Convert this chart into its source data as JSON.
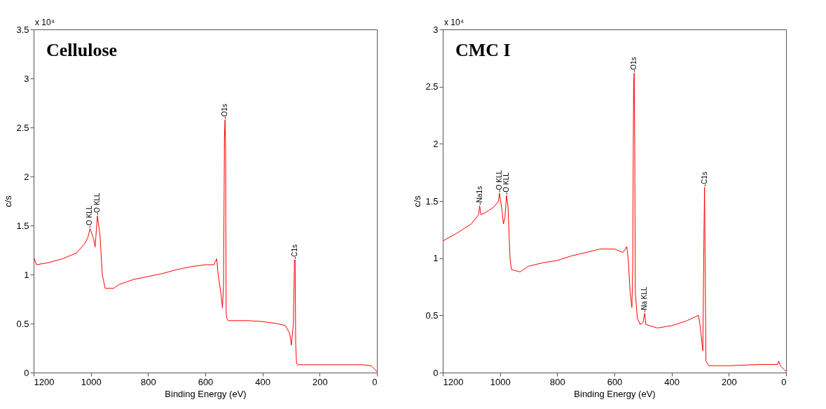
{
  "chart_data": [
    {
      "type": "line",
      "title": "Cellulose",
      "xlabel": "Binding Energy (eV)",
      "ylabel": "c/s",
      "xlim": [
        1200,
        0
      ],
      "xticks": [
        1200,
        1000,
        800,
        600,
        400,
        200,
        0
      ],
      "ylim": [
        0,
        3.5
      ],
      "yticks": [
        0,
        0.5,
        1,
        1.5,
        2,
        2.5,
        3,
        3.5
      ],
      "annotations": [
        "x 10⁴",
        {
          "text": "-O KLL",
          "x": 1003,
          "y": 1.47
        },
        {
          "text": "-O KLL",
          "x": 977,
          "y": 1.6
        },
        {
          "text": "-O1s",
          "x": 531,
          "y": 2.58
        },
        {
          "text": "-C1s",
          "x": 286,
          "y": 1.15
        }
      ],
      "series": [
        {
          "color": "#ff0000",
          "x": [
            1200,
            1190,
            1150,
            1100,
            1050,
            1020,
            1010,
            1003,
            990,
            985,
            977,
            968,
            960,
            950,
            920,
            900,
            850,
            800,
            750,
            700,
            650,
            600,
            570,
            560,
            555,
            545,
            540,
            536,
            533,
            531,
            529,
            527,
            524,
            520,
            450,
            400,
            350,
            320,
            305,
            299,
            292,
            288,
            286,
            284,
            281,
            277,
            200,
            100,
            50,
            20,
            0
          ],
          "values": [
            1.18,
            1.1,
            1.12,
            1.16,
            1.22,
            1.32,
            1.38,
            1.47,
            1.36,
            1.28,
            1.6,
            1.4,
            1.0,
            0.86,
            0.86,
            0.9,
            0.95,
            0.98,
            1.01,
            1.05,
            1.08,
            1.1,
            1.1,
            1.16,
            1.0,
            0.8,
            0.66,
            0.9,
            2.4,
            2.58,
            2.3,
            0.6,
            0.55,
            0.53,
            0.53,
            0.52,
            0.5,
            0.48,
            0.4,
            0.28,
            0.5,
            1.15,
            1.15,
            0.3,
            0.1,
            0.08,
            0.08,
            0.08,
            0.08,
            0.07,
            0.01
          ]
        }
      ]
    },
    {
      "type": "line",
      "title": "CMC I",
      "xlabel": "Binding Energy (eV)",
      "ylabel": "c/s",
      "xlim": [
        1200,
        0
      ],
      "xticks": [
        1200,
        1000,
        800,
        600,
        400,
        200,
        0
      ],
      "ylim": [
        0,
        3
      ],
      "yticks": [
        0,
        0.5,
        1,
        1.5,
        2,
        2.5,
        3
      ],
      "annotations": [
        "x 10⁴",
        {
          "text": "-Na1s",
          "x": 1071,
          "y": 1.46
        },
        {
          "text": "-O KLL",
          "x": 1002,
          "y": 1.57
        },
        {
          "text": "-O KLL",
          "x": 977,
          "y": 1.55
        },
        {
          "text": "-O1s",
          "x": 531,
          "y": 2.62
        },
        {
          "text": "-Na KLL",
          "x": 494,
          "y": 0.52
        },
        {
          "text": "-C1s",
          "x": 285,
          "y": 1.62
        }
      ],
      "series": [
        {
          "color": "#ff0000",
          "x": [
            1200,
            1150,
            1100,
            1075,
            1071,
            1067,
            1050,
            1020,
            1005,
            1002,
            993,
            988,
            983,
            977,
            972,
            965,
            960,
            930,
            900,
            850,
            800,
            750,
            700,
            650,
            600,
            570,
            557,
            552,
            545,
            539,
            536,
            533,
            531,
            529,
            527,
            520,
            510,
            500,
            494,
            490,
            450,
            400,
            350,
            306,
            300,
            291,
            287,
            285,
            283,
            280,
            270,
            200,
            100,
            30,
            26,
            20,
            0
          ],
          "values": [
            1.15,
            1.22,
            1.3,
            1.38,
            1.46,
            1.38,
            1.4,
            1.45,
            1.5,
            1.57,
            1.42,
            1.3,
            1.35,
            1.55,
            1.45,
            1.0,
            0.9,
            0.88,
            0.93,
            0.96,
            0.98,
            1.02,
            1.05,
            1.08,
            1.08,
            1.05,
            1.1,
            1.0,
            0.7,
            0.57,
            0.9,
            2.5,
            2.62,
            2.0,
            0.7,
            0.48,
            0.42,
            0.44,
            0.52,
            0.42,
            0.39,
            0.41,
            0.45,
            0.5,
            0.4,
            0.19,
            1.2,
            1.62,
            1.0,
            0.1,
            0.06,
            0.06,
            0.07,
            0.07,
            0.1,
            0.06,
            0.01
          ]
        }
      ]
    }
  ]
}
